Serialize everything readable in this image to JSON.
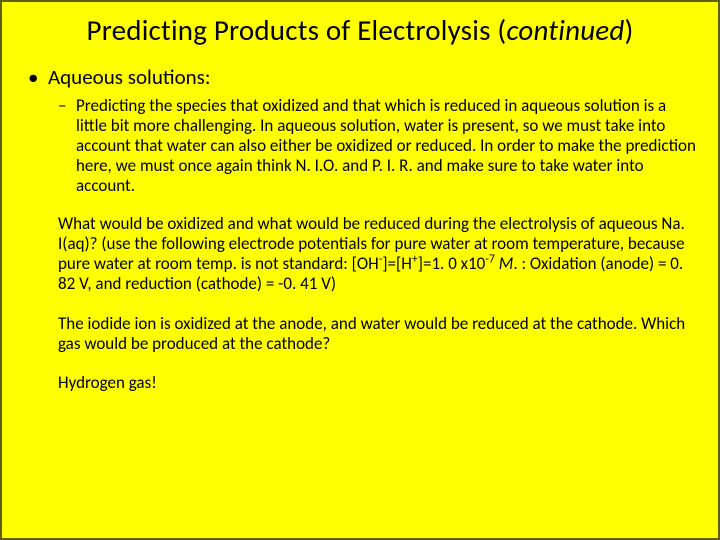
{
  "background_color": "#ffff00",
  "border_color": "#5f5f00",
  "text_color": "#000000",
  "font_family": "Calibri",
  "title": {
    "prefix": "Predicting Products of Electrolysis (",
    "italic": "continued",
    "suffix": ")",
    "fontsize": 29
  },
  "bullet_l1": {
    "marker": "•",
    "text": "Aqueous solutions:",
    "fontsize": 21
  },
  "bullet_l2": {
    "marker": "–",
    "text": "Predicting the species that oxidized and that which is reduced in aqueous solution is a little bit more challenging.  In aqueous solution, water is present, so we must take into account that water can also either be oxidized or reduced.  In order to make the prediction here, we must once again think N. I.O. and P. I. R. and make sure to take water into account.",
    "fontsize": 17
  },
  "para1": {
    "pre": "What would be oxidized and what would be reduced during the electrolysis of aqueous Na. I(aq)?  (use the following electrode potentials for pure water at room temperature, because pure water at room temp. is not standard: [OH",
    "sup1": "-",
    "mid1": "]=[H",
    "sup2": "+",
    "mid2": "]=1. 0 x10",
    "sup3": "-7",
    "mid3": " ",
    "italic_M": "M",
    "post": ". :  Oxidation (anode) = 0. 82 V, and reduction (cathode) = -0. 41 V)",
    "fontsize": 17
  },
  "para2": {
    "text": "The iodide ion is oxidized at the anode, and water would be reduced at the cathode.  Which gas would be produced at the cathode?",
    "fontsize": 17
  },
  "para3": {
    "text": "Hydrogen gas!",
    "fontsize": 17
  }
}
